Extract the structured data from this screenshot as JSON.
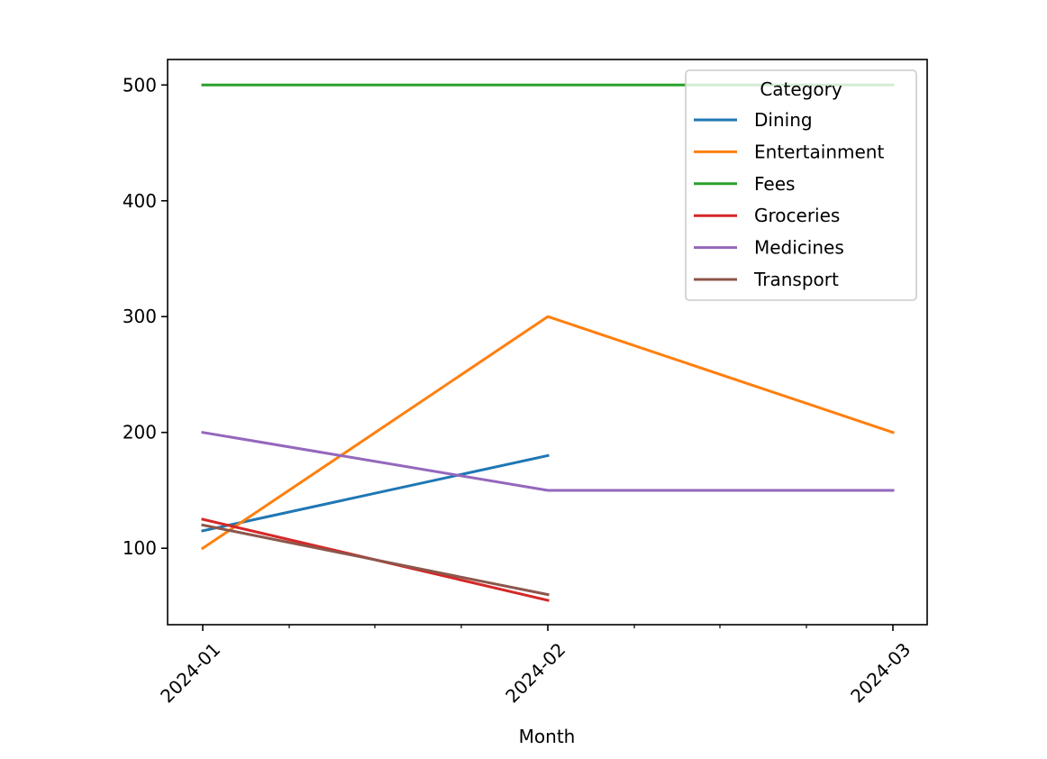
{
  "chart_data": {
    "type": "line",
    "title": "",
    "xlabel": "Month",
    "ylabel": "",
    "categories": [
      "2024-01",
      "2024-02",
      "2024-03"
    ],
    "ylim": [
      34,
      522
    ],
    "y_ticks": [
      100,
      200,
      300,
      400,
      500
    ],
    "legend": {
      "title": "Category",
      "position": "top-right"
    },
    "series": [
      {
        "name": "Dining",
        "color": "#1f77b4",
        "values": [
          115,
          180,
          null
        ]
      },
      {
        "name": "Entertainment",
        "color": "#ff7f0e",
        "values": [
          100,
          300,
          200
        ]
      },
      {
        "name": "Fees",
        "color": "#2ca02c",
        "values": [
          500,
          500,
          500
        ]
      },
      {
        "name": "Groceries",
        "color": "#d62728",
        "values": [
          125,
          55,
          null
        ]
      },
      {
        "name": "Medicines",
        "color": "#9467bd",
        "values": [
          200,
          150,
          150
        ]
      },
      {
        "name": "Transport",
        "color": "#8c564b",
        "values": [
          120,
          60,
          null
        ]
      }
    ]
  }
}
